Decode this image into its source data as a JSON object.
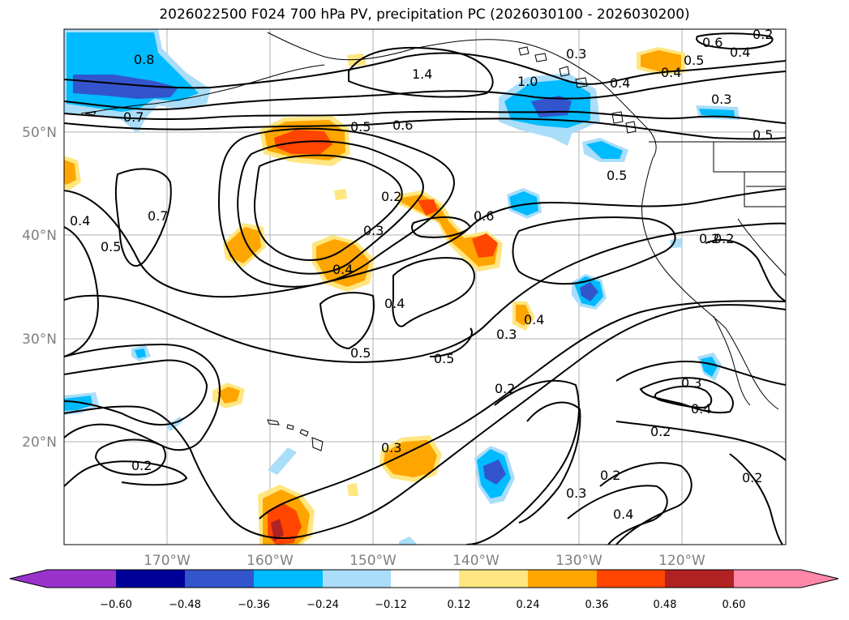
{
  "title": "2026022500 F024 700 hPa PV, precipitation PC (2026030100 - 2026030200)",
  "map": {
    "lon_range": [
      -180,
      -110
    ],
    "lat_range": [
      10,
      60
    ],
    "lat_labels": [
      "50°N",
      "40°N",
      "30°N",
      "20°N"
    ],
    "lon_labels": [
      "170°W",
      "160°W",
      "150°W",
      "140°W",
      "130°W",
      "120°W"
    ],
    "gridlines": true
  },
  "contour_labels": [
    "0.8",
    "1.4",
    "0.6",
    "0.2",
    "0.3",
    "0.5",
    "0.4",
    "1.0",
    "0.7",
    "0.5",
    "0.6",
    "0.4",
    "0.3",
    "0.5",
    "0.2",
    "0.3",
    "0.6",
    "0.2",
    "0.3",
    "0.4",
    "0.4",
    "0.5",
    "0.4",
    "0.5",
    "0.5",
    "0.4",
    "0.7",
    "0.5",
    "0.4",
    "0.2",
    "0.2",
    "0.3",
    "0.2",
    "0.3",
    "0.4",
    "0.3",
    "0.2",
    "0.2",
    "0.4",
    "0.2"
  ],
  "colorbar": {
    "ticks": [
      "−0.60",
      "−0.48",
      "−0.36",
      "−0.24",
      "−0.12",
      "0.12",
      "0.24",
      "0.36",
      "0.48",
      "0.60"
    ],
    "colors": [
      "#9933cc",
      "#000099",
      "#3355cc",
      "#00bbff",
      "#aaddf8",
      "#ffffff",
      "#ffe680",
      "#ffa500",
      "#ff4500",
      "#b22222",
      "#ff88aa"
    ]
  }
}
